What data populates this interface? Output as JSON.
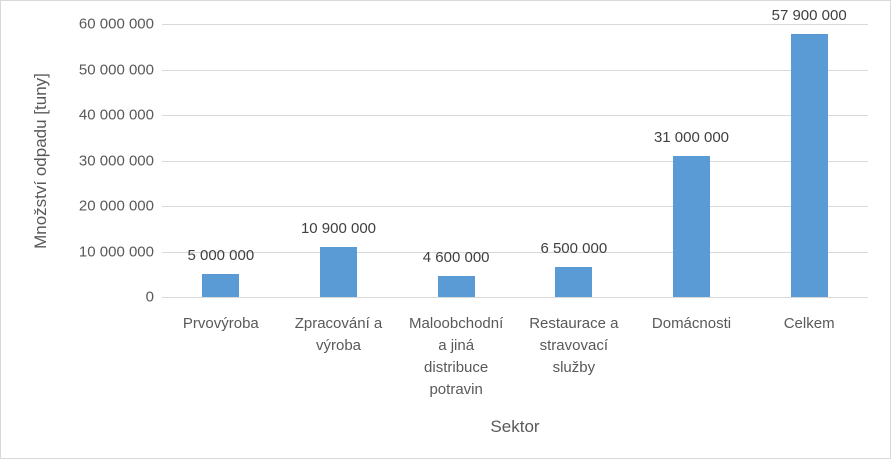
{
  "chart_data": {
    "type": "bar",
    "title": "",
    "xlabel": "Sektor",
    "ylabel": "Množství odpadu [tuny]",
    "ylim": [
      0,
      60000000
    ],
    "yticks": [
      "0",
      "10 000 000",
      "20 000 000",
      "30 000 000",
      "40 000 000",
      "50 000 000",
      "60 000 000"
    ],
    "grid": true,
    "legend": null,
    "categories": [
      "Prvovýroba",
      "Zpracování a výroba",
      "Maloobchodní a jiná distribuce potravin",
      "Restaurace a stravovací služby",
      "Domácnosti",
      "Celkem"
    ],
    "category_display": [
      "Prvovýroba",
      "Zpracování a\nvýroba",
      "Maloobchodní\na jiná\ndistribuce\npotravin",
      "Restaurace a\nstravovací\nslužby",
      "Domácnosti",
      "Celkem"
    ],
    "values": [
      5000000,
      10900000,
      4600000,
      6500000,
      31000000,
      57900000
    ],
    "data_labels": [
      "5 000 000",
      "10 900 000",
      "4 600 000",
      "6 500 000",
      "31 000 000",
      "57 900 000"
    ],
    "bar_color": "#5b9bd5"
  }
}
